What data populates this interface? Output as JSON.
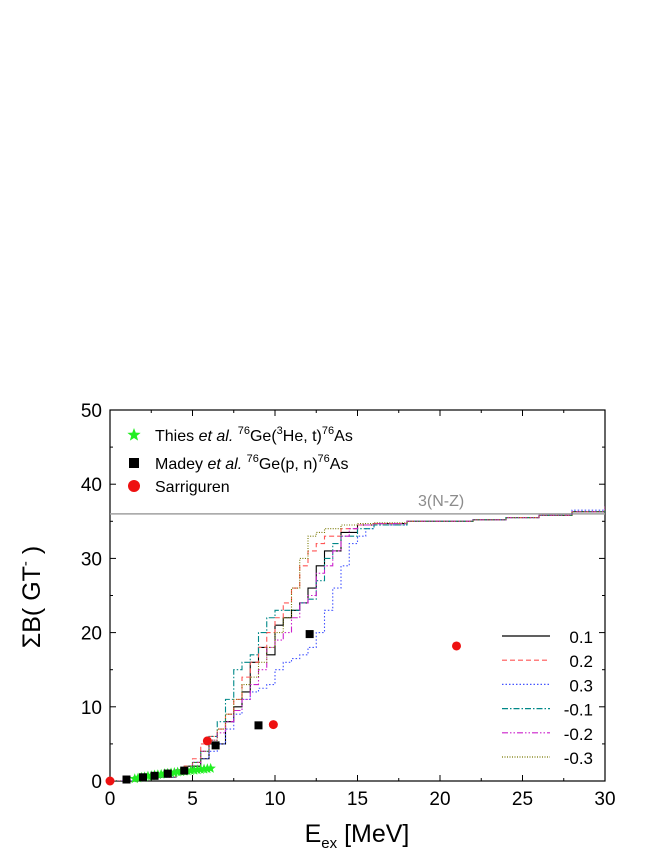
{
  "chart_data": {
    "type": "line",
    "xlabel_main": "E",
    "xlabel_sub": "ex",
    "xlabel_unit": " [MeV]",
    "ylabel_main": "ΣB( GT",
    "ylabel_sup": "-",
    "ylabel_close": " )",
    "xlim": [
      0,
      30
    ],
    "ylim": [
      0,
      50
    ],
    "xticks": [
      0,
      5,
      10,
      15,
      20,
      25,
      30
    ],
    "yticks": [
      0,
      10,
      20,
      30,
      40,
      50
    ],
    "grid": false,
    "reference_line": {
      "y": 36,
      "label": "3(N-Z)",
      "color": "#a0a0a0"
    },
    "legend_top": [
      {
        "marker": "star",
        "color": "#22ee22",
        "text_parts": [
          "Thies ",
          "et al.",
          " ",
          "76",
          "Ge(",
          "3",
          "He, t)",
          "76",
          "As"
        ]
      },
      {
        "marker": "square",
        "color": "#000000",
        "text_parts": [
          "Madey ",
          "et al.",
          " ",
          "76",
          "Ge(p, n)",
          "76",
          "As"
        ]
      },
      {
        "marker": "circle",
        "color": "#ee1111",
        "text_parts": [
          "Sarriguren"
        ]
      }
    ],
    "series": [
      {
        "name": "0.1",
        "color": "#000000",
        "dash": "",
        "x": [
          0,
          2,
          3,
          4,
          4.5,
          5.5,
          6,
          6.5,
          7,
          7.5,
          8,
          8.5,
          9,
          9.5,
          10,
          10.5,
          11,
          11.5,
          12,
          12.5,
          13,
          14,
          15,
          16,
          18,
          20,
          22,
          24,
          26,
          28,
          30
        ],
        "y": [
          0,
          0.5,
          1,
          1.5,
          2,
          3,
          5,
          5,
          8,
          10,
          12,
          16,
          18,
          17,
          21,
          22,
          23,
          24,
          26,
          29,
          31,
          33.5,
          34.5,
          34.7,
          35,
          35,
          35.2,
          35.5,
          35.8,
          36.3,
          37
        ]
      },
      {
        "name": "0.2",
        "color": "#ff5555",
        "dash": "5,3",
        "x": [
          0,
          2,
          3,
          4,
          4.5,
          5,
          5.5,
          6,
          6.5,
          7,
          7.5,
          8,
          8.5,
          9,
          9.5,
          10,
          10.5,
          11,
          11.5,
          12,
          12.5,
          13,
          14,
          15,
          16,
          18,
          20,
          22,
          24,
          26,
          28,
          30
        ],
        "y": [
          0,
          0.5,
          1,
          1.5,
          2,
          3,
          5,
          6,
          7,
          9,
          11,
          14,
          16,
          18,
          20,
          22,
          24,
          26,
          29,
          31,
          32,
          33,
          34,
          34.5,
          34.7,
          35,
          35,
          35.2,
          35.5,
          35.8,
          36.3,
          37
        ]
      },
      {
        "name": "0.3",
        "color": "#4455ff",
        "dash": "1.5,2",
        "x": [
          0,
          2,
          4,
          5,
          5.5,
          6,
          6.5,
          7,
          7.5,
          8,
          8.5,
          9,
          9.5,
          10,
          10.5,
          11,
          11.5,
          12,
          12.5,
          13,
          13.5,
          14,
          14.5,
          15,
          15.5,
          16,
          18,
          20,
          22,
          24,
          26,
          28,
          30
        ],
        "y": [
          0,
          0.5,
          1.5,
          2.5,
          3,
          4,
          5,
          7,
          9,
          11,
          12,
          12.5,
          13,
          15,
          16,
          16.5,
          17,
          18,
          20,
          23,
          26,
          29,
          32,
          33,
          34,
          34.5,
          35,
          35,
          35.2,
          35.5,
          35.8,
          36.5,
          37
        ]
      },
      {
        "name": "-0.1",
        "color": "#008888",
        "dash": "6,2,1.5,2",
        "x": [
          0,
          2,
          4,
          5,
          5.5,
          6,
          6.5,
          7,
          7.5,
          8,
          8.5,
          9,
          9.5,
          10,
          10.5,
          11,
          11.5,
          12,
          12.5,
          13,
          13.5,
          14,
          15,
          16,
          18,
          20,
          22,
          24,
          26,
          28,
          30
        ],
        "y": [
          0,
          0.5,
          1.5,
          2.5,
          4,
          6,
          8,
          11,
          15,
          16,
          17,
          20,
          22,
          23,
          23,
          23,
          24,
          24.5,
          27,
          30,
          32,
          33,
          34,
          34.5,
          35,
          35,
          35.2,
          35.5,
          35.8,
          36.3,
          37
        ]
      },
      {
        "name": "-0.2",
        "color": "#cc22cc",
        "dash": "6,2,1.5,2,1.5,2",
        "x": [
          0,
          2,
          4,
          5,
          5.5,
          6,
          6.5,
          7,
          7.5,
          8,
          8.5,
          9,
          9.5,
          10,
          10.5,
          11,
          11.5,
          12,
          12.5,
          13,
          13.5,
          14,
          14.5,
          15,
          16,
          18,
          20,
          22,
          24,
          26,
          28,
          30
        ],
        "y": [
          0,
          0.5,
          1.5,
          2.5,
          4,
          5.5,
          6.5,
          8,
          9.5,
          11,
          13,
          15,
          18,
          19,
          20,
          22,
          24,
          25,
          28,
          29,
          31,
          33,
          34,
          34.5,
          34.7,
          35,
          35,
          35.2,
          35.5,
          35.8,
          36.3,
          37
        ]
      },
      {
        "name": "-0.3",
        "color": "#777700",
        "dash": "1,1.5",
        "x": [
          0,
          2,
          4,
          5,
          5.5,
          6,
          6.5,
          7,
          7.5,
          8,
          8.5,
          9,
          9.5,
          10,
          10.5,
          11,
          11.5,
          12,
          12.5,
          13,
          14,
          15,
          16,
          18,
          20,
          22,
          24,
          26,
          28,
          30
        ],
        "y": [
          0,
          0.5,
          1.5,
          2.5,
          4,
          5.5,
          7,
          9,
          11,
          13,
          14,
          16,
          18,
          20,
          22,
          26,
          30,
          33,
          33.5,
          34,
          34.5,
          34.7,
          34.8,
          35,
          35,
          35.2,
          35.5,
          35.8,
          36.3,
          37
        ]
      }
    ],
    "points_thies_star": {
      "x": [
        1.5,
        1.7,
        1.9,
        2.1,
        2.3,
        2.5,
        2.7,
        2.9,
        3.1,
        3.3,
        3.5,
        3.7,
        3.9,
        4.1,
        4.3,
        4.5,
        4.7,
        4.9,
        5.1,
        5.3,
        5.5,
        5.7,
        5.9,
        6.1
      ],
      "y": [
        0.3,
        0.4,
        0.5,
        0.55,
        0.65,
        0.7,
        0.8,
        0.85,
        0.9,
        1.0,
        1.05,
        1.1,
        1.15,
        1.2,
        1.25,
        1.3,
        1.35,
        1.4,
        1.45,
        1.5,
        1.55,
        1.6,
        1.65,
        1.7
      ]
    },
    "points_madey_square": {
      "x": [
        1.0,
        2.0,
        2.7,
        3.5,
        4.5,
        6.4,
        9.0,
        12.1
      ],
      "y": [
        0.2,
        0.5,
        0.7,
        1.0,
        1.4,
        4.8,
        7.5,
        19.8
      ]
    },
    "points_sarriguren_circle": {
      "x": [
        0.0,
        5.9,
        9.9,
        21.0
      ],
      "y": [
        0.0,
        5.4,
        7.6,
        18.2
      ]
    }
  }
}
